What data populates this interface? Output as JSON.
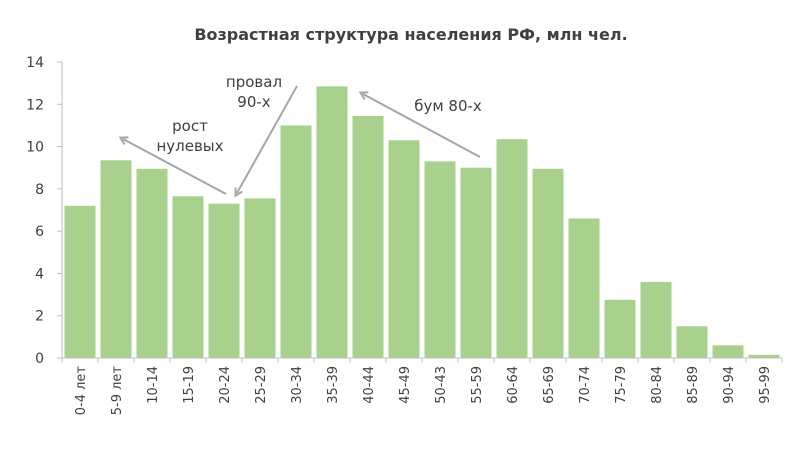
{
  "chart_data": {
    "type": "bar",
    "title": "Возрастная структура населения РФ, млн чел.",
    "categories": [
      "0-4 лет",
      "5-9 лет",
      "10-14",
      "15-19",
      "20-24",
      "25-29",
      "30-34",
      "35-39",
      "40-44",
      "45-49",
      "50-43",
      "55-59",
      "60-64",
      "65-69",
      "70-74",
      "75-79",
      "80-84",
      "85-89",
      "90-94",
      "95-99"
    ],
    "values": [
      7.2,
      9.35,
      8.95,
      7.65,
      7.3,
      7.55,
      11.0,
      12.85,
      11.45,
      10.3,
      9.3,
      9.0,
      10.35,
      8.95,
      6.6,
      2.75,
      3.6,
      1.5,
      0.6,
      0.15
    ],
    "ylim": [
      0,
      14
    ],
    "yticks": [
      0,
      2,
      4,
      6,
      8,
      10,
      12,
      14
    ],
    "grid": false,
    "bar_color": "#a9d18e",
    "annotations": [
      {
        "lines": [
          "рост",
          "нулевых"
        ]
      },
      {
        "lines": [
          "провал",
          "90-х"
        ]
      },
      {
        "lines": [
          "бум 80-х"
        ]
      }
    ]
  }
}
